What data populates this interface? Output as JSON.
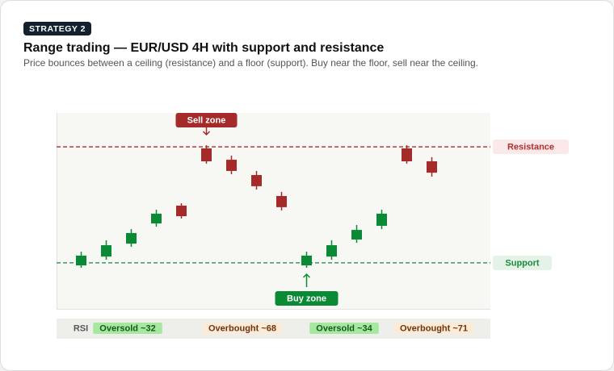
{
  "badge": "STRATEGY 2",
  "chart_data": {
    "type": "candlestick",
    "title": "Range trading — EUR/USD 4H with support and resistance",
    "subtitle": "Price bounces between a ceiling (resistance) and a floor (support). Buy near the floor, sell near the ceiling.",
    "categories": [
      null,
      null,
      null,
      null,
      null,
      null,
      null,
      null,
      null,
      null,
      null,
      null,
      null,
      null,
      null
    ],
    "open": [
      22.2,
      26.7,
      33.3,
      43.6,
      52.7,
      81.9,
      76.1,
      68.3,
      57.6,
      22.2,
      26.7,
      35.4,
      42.4,
      81.9,
      75.3
    ],
    "high": [
      29.2,
      35.0,
      40.7,
      50.6,
      53.9,
      83.5,
      78.2,
      70.4,
      59.7,
      29.2,
      35.0,
      42.8,
      50.6,
      83.5,
      77.4
    ],
    "low": [
      21.0,
      25.1,
      31.7,
      42.0,
      46.1,
      74.1,
      68.7,
      60.9,
      50.2,
      21.0,
      25.1,
      33.7,
      40.7,
      74.1,
      67.5
    ],
    "close": [
      27.2,
      32.5,
      38.7,
      48.6,
      47.3,
      75.3,
      70.4,
      62.6,
      51.9,
      27.2,
      32.5,
      40.3,
      48.6,
      75.3,
      69.5
    ],
    "up_color": "#0a8a35",
    "down_color": "#a52a2a",
    "ylim": [
      0,
      100
    ],
    "levels": [
      {
        "name": "Resistance",
        "value": 82.7,
        "color": "#b03030",
        "fill": "#fbe8e8"
      },
      {
        "name": "Support",
        "value": 23.5,
        "color": "#1a8a3a",
        "fill": "#e4f2e8"
      }
    ],
    "annotations": [
      {
        "text": "Sell zone",
        "color": "#a52a2a"
      },
      {
        "text": "Buy zone",
        "color": "#0a8a35"
      }
    ],
    "rsi": {
      "label": "RSI",
      "zones": [
        {
          "text": "Oversold ~32",
          "fill": "#a6e8a0",
          "color": "#145a20"
        },
        {
          "text": "Overbought ~68",
          "fill": "#fdebd8",
          "color": "#6b3410"
        },
        {
          "text": "Oversold ~34",
          "fill": "#a6e8a0",
          "color": "#145a20"
        },
        {
          "text": "Overbought ~71",
          "fill": "#fdebd8",
          "color": "#6b3410"
        }
      ]
    }
  }
}
